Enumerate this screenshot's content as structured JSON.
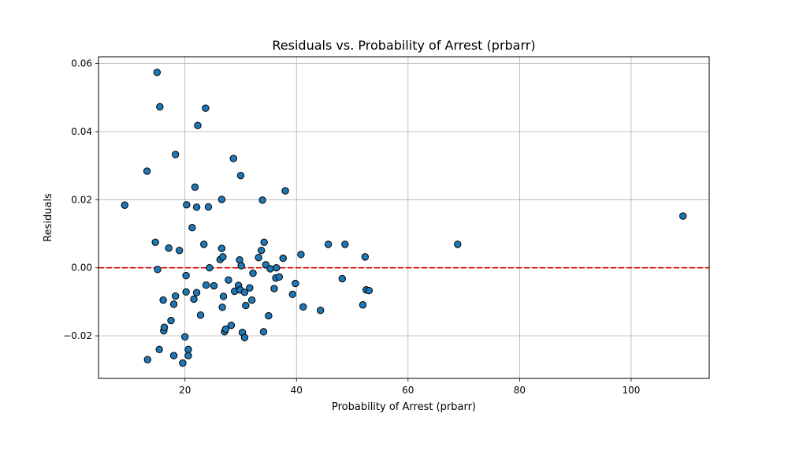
{
  "chart_data": {
    "type": "scatter",
    "title": "Residuals vs. Probability of Arrest (prbarr)",
    "xlabel": "Probability of Arrest (prbarr)",
    "ylabel": "Residuals",
    "xlim": [
      4.5,
      114
    ],
    "ylim": [
      -0.0325,
      0.062
    ],
    "x_ticks": [
      20,
      40,
      60,
      80,
      100
    ],
    "y_ticks": [
      -0.02,
      0.0,
      0.02,
      0.04,
      0.06
    ],
    "x_tick_labels": [
      "20",
      "40",
      "60",
      "80",
      "100"
    ],
    "y_tick_labels": [
      "−0.02",
      "0.00",
      "0.02",
      "0.04",
      "0.06"
    ],
    "grid": true,
    "reference_line": {
      "y": 0.0,
      "style": "dashed",
      "color": "#dd0000"
    },
    "marker_color": "#1f77b4",
    "marker_edge": "#000000",
    "points": [
      {
        "x": 9.2,
        "y": 0.0184
      },
      {
        "x": 13.2,
        "y": 0.0284
      },
      {
        "x": 13.3,
        "y": -0.027
      },
      {
        "x": 14.7,
        "y": 0.0075
      },
      {
        "x": 15.0,
        "y": 0.0574
      },
      {
        "x": 15.1,
        "y": -0.0005
      },
      {
        "x": 15.4,
        "y": -0.024
      },
      {
        "x": 15.5,
        "y": 0.0473
      },
      {
        "x": 16.1,
        "y": -0.0095
      },
      {
        "x": 16.2,
        "y": -0.0185
      },
      {
        "x": 16.3,
        "y": -0.0175
      },
      {
        "x": 17.1,
        "y": 0.0058
      },
      {
        "x": 17.5,
        "y": -0.0155
      },
      {
        "x": 18.0,
        "y": -0.0258
      },
      {
        "x": 18.0,
        "y": -0.0107
      },
      {
        "x": 18.3,
        "y": 0.0333
      },
      {
        "x": 18.3,
        "y": -0.0083
      },
      {
        "x": 19.0,
        "y": 0.0051
      },
      {
        "x": 19.6,
        "y": -0.028
      },
      {
        "x": 20.0,
        "y": -0.0203
      },
      {
        "x": 20.2,
        "y": -0.0071
      },
      {
        "x": 20.2,
        "y": -0.0023
      },
      {
        "x": 20.3,
        "y": 0.0185
      },
      {
        "x": 20.6,
        "y": -0.024
      },
      {
        "x": 20.6,
        "y": -0.0258
      },
      {
        "x": 21.3,
        "y": 0.0118
      },
      {
        "x": 21.6,
        "y": -0.0092
      },
      {
        "x": 21.8,
        "y": 0.0237
      },
      {
        "x": 22.1,
        "y": 0.0178
      },
      {
        "x": 22.1,
        "y": -0.0073
      },
      {
        "x": 22.3,
        "y": 0.0418
      },
      {
        "x": 22.8,
        "y": -0.0139
      },
      {
        "x": 23.4,
        "y": 0.0069
      },
      {
        "x": 23.7,
        "y": 0.0469
      },
      {
        "x": 23.8,
        "y": -0.0051
      },
      {
        "x": 24.2,
        "y": 0.0179
      },
      {
        "x": 24.4,
        "y": 0.0
      },
      {
        "x": 25.2,
        "y": -0.0053
      },
      {
        "x": 26.3,
        "y": 0.0024
      },
      {
        "x": 26.6,
        "y": 0.0201
      },
      {
        "x": 26.6,
        "y": 0.0057
      },
      {
        "x": 26.7,
        "y": -0.0116
      },
      {
        "x": 26.8,
        "y": 0.0032
      },
      {
        "x": 26.9,
        "y": -0.0084
      },
      {
        "x": 27.1,
        "y": -0.0188
      },
      {
        "x": 27.3,
        "y": -0.018
      },
      {
        "x": 27.8,
        "y": -0.0036
      },
      {
        "x": 28.3,
        "y": -0.0169
      },
      {
        "x": 28.7,
        "y": 0.0321
      },
      {
        "x": 28.9,
        "y": -0.0069
      },
      {
        "x": 29.6,
        "y": -0.0052
      },
      {
        "x": 29.8,
        "y": 0.0023
      },
      {
        "x": 29.9,
        "y": -0.0065
      },
      {
        "x": 30.0,
        "y": 0.0271
      },
      {
        "x": 30.1,
        "y": 0.0006
      },
      {
        "x": 30.3,
        "y": -0.019
      },
      {
        "x": 30.7,
        "y": -0.0205
      },
      {
        "x": 30.7,
        "y": -0.0072
      },
      {
        "x": 30.9,
        "y": -0.0111
      },
      {
        "x": 31.6,
        "y": -0.0059
      },
      {
        "x": 32.0,
        "y": -0.0095
      },
      {
        "x": 32.2,
        "y": -0.0016
      },
      {
        "x": 33.2,
        "y": 0.003
      },
      {
        "x": 33.7,
        "y": 0.0051
      },
      {
        "x": 33.9,
        "y": 0.0199
      },
      {
        "x": 34.1,
        "y": -0.0188
      },
      {
        "x": 34.2,
        "y": 0.0075
      },
      {
        "x": 34.5,
        "y": 0.0009
      },
      {
        "x": 35.0,
        "y": -0.0141
      },
      {
        "x": 35.3,
        "y": -0.0003
      },
      {
        "x": 36.0,
        "y": -0.0061
      },
      {
        "x": 36.3,
        "y": -0.003
      },
      {
        "x": 36.4,
        "y": 0.0
      },
      {
        "x": 36.9,
        "y": -0.0027
      },
      {
        "x": 37.6,
        "y": 0.0028
      },
      {
        "x": 38.0,
        "y": 0.0226
      },
      {
        "x": 39.3,
        "y": -0.0078
      },
      {
        "x": 39.8,
        "y": -0.0046
      },
      {
        "x": 40.8,
        "y": 0.0039
      },
      {
        "x": 41.2,
        "y": -0.0115
      },
      {
        "x": 44.3,
        "y": -0.0125
      },
      {
        "x": 45.7,
        "y": 0.0069
      },
      {
        "x": 48.2,
        "y": -0.0032
      },
      {
        "x": 48.7,
        "y": 0.0069
      },
      {
        "x": 51.9,
        "y": -0.0109
      },
      {
        "x": 52.3,
        "y": 0.0032
      },
      {
        "x": 52.5,
        "y": -0.0065
      },
      {
        "x": 53.0,
        "y": -0.0067
      },
      {
        "x": 68.9,
        "y": 0.0069
      },
      {
        "x": 109.3,
        "y": 0.0152
      }
    ]
  }
}
